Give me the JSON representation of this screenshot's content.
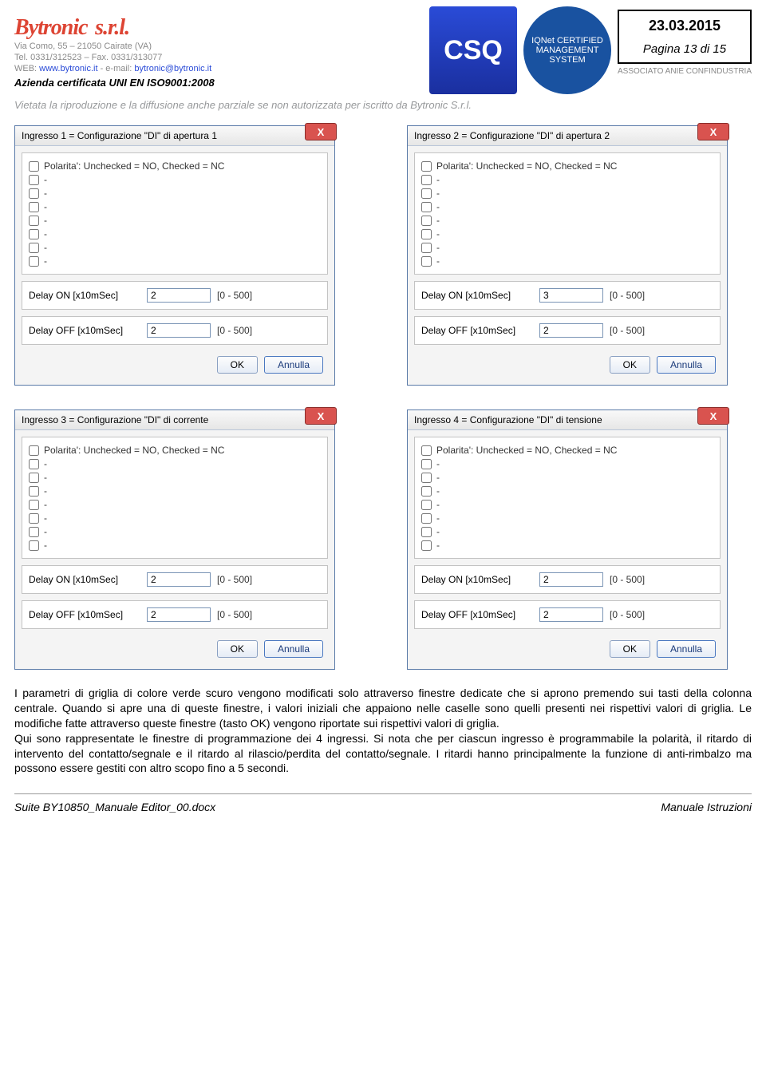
{
  "header": {
    "brand": "Bytronic",
    "brand_suffix": "s.r.l.",
    "addr": "Via Como, 55 – 21050 Cairate (VA)",
    "tel": "Tel. 0331/312523 – Fax. 0331/313077",
    "web_prefix": "WEB: ",
    "web": "www.bytronic.it",
    "email_prefix": " - e-mail: ",
    "email": "bytronic@bytronic.it",
    "cert": "Azienda certificata UNI EN ISO9001:2008",
    "vietata": "Vietata la riproduzione e la diffusione anche parziale se non autorizzata per iscritto da Bytronic S.r.l.",
    "csq": "CSQ",
    "iqnet": "IQNet CERTIFIED MANAGEMENT SYSTEM",
    "date": "23.03.2015",
    "page": "Pagina 13 di 15",
    "assoc": "ASSOCIATO  ANIE  CONFINDUSTRIA"
  },
  "dialogs": [
    {
      "title": "Ingresso 1 = Configurazione \"DI\" di apertura 1",
      "delay_on": "2",
      "delay_off": "2"
    },
    {
      "title": "Ingresso 2 = Configurazione \"DI\" di apertura 2",
      "delay_on": "3",
      "delay_off": "2"
    },
    {
      "title": "Ingresso 3 = Configurazione \"DI\" di corrente",
      "delay_on": "2",
      "delay_off": "2"
    },
    {
      "title": "Ingresso 4 = Configurazione \"DI\" di tensione",
      "delay_on": "2",
      "delay_off": "2"
    }
  ],
  "dlg_common": {
    "polarity": "Polarita': Unchecked = NO, Checked = NC",
    "dash": "-",
    "delay_on_lbl": "Delay ON [x10mSec]",
    "delay_off_lbl": "Delay OFF [x10mSec]",
    "range": "[0 - 500]",
    "ok": "OK",
    "cancel": "Annulla"
  },
  "para": "I parametri di griglia di colore verde scuro vengono modificati solo attraverso finestre dedicate che si aprono premendo sui tasti della colonna centrale. Quando si apre una di queste finestre, i valori iniziali che appaiono nelle caselle sono quelli presenti nei rispettivi valori di griglia. Le modifiche fatte attraverso queste finestre (tasto OK) vengono riportate sui rispettivi valori di griglia.\nQui sono rappresentate le finestre di programmazione dei 4 ingressi. Si nota che per ciascun ingresso è programmabile la polarità, il ritardo di intervento del contatto/segnale e il ritardo al rilascio/perdita del contatto/segnale. I ritardi hanno principalmente la funzione di anti-rimbalzo ma possono essere gestiti con altro scopo fino a 5 secondi.",
  "footer": {
    "left": "Suite BY10850_Manuale Editor_00.docx",
    "right": "Manuale Istruzioni"
  }
}
